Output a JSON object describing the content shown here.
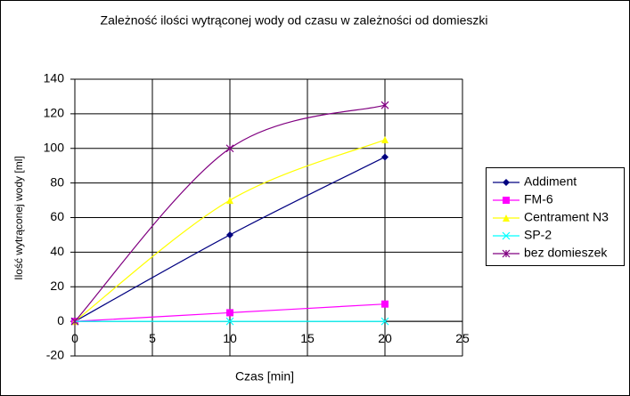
{
  "chart_data": {
    "type": "line",
    "title": "Zależność ilości wytrąconej wody od czasu w zależności od domieszki",
    "x_label": "Czas [min]",
    "y_label": "Ilość wytrąconej wody [ml]",
    "x": [
      0,
      10,
      20
    ],
    "series": [
      {
        "name": "Addiment",
        "color": "#000080",
        "marker": "diamond",
        "values": [
          0,
          50,
          95
        ]
      },
      {
        "name": "FM-6",
        "color": "#ff00ff",
        "marker": "square",
        "values": [
          0,
          5,
          10
        ]
      },
      {
        "name": "Centrament N3",
        "color": "#ffff00",
        "marker": "triangle",
        "values": [
          0,
          70,
          105
        ]
      },
      {
        "name": "SP-2",
        "color": "#00ffff",
        "marker": "x",
        "values": [
          0,
          0,
          0
        ]
      },
      {
        "name": "bez domieszek",
        "color": "#800080",
        "marker": "star",
        "values": [
          0,
          100,
          125
        ]
      }
    ],
    "xlim": [
      0,
      25
    ],
    "xticks": [
      0,
      5,
      10,
      15,
      20,
      25
    ],
    "ylim": [
      -20,
      140
    ],
    "yticks": [
      -20,
      0,
      20,
      40,
      60,
      80,
      100,
      120,
      140
    ],
    "grid": true,
    "smooth": true,
    "legend": "right"
  }
}
